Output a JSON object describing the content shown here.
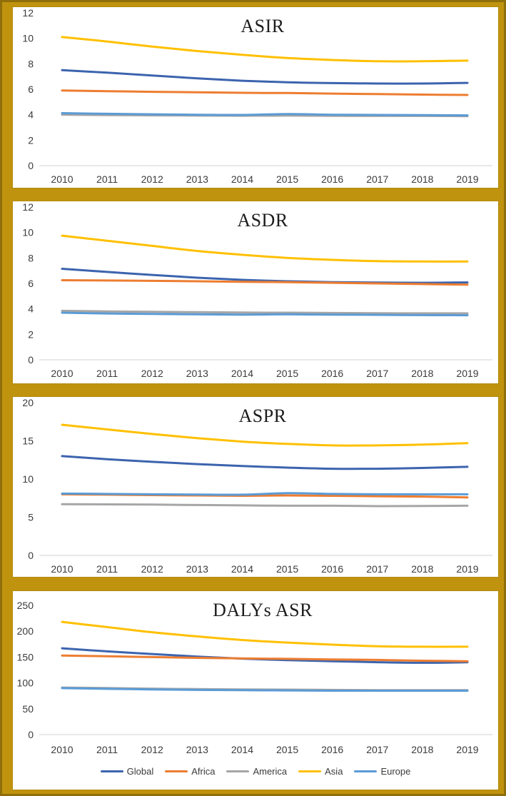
{
  "figure": {
    "frame_color": "#C0930E",
    "frame_edge_color": "#8F6E0C",
    "panel_background": "#FFFFFF",
    "axis_line_color": "#D9D9D9",
    "tick_label_color": "#3B3B3B"
  },
  "colors": {
    "Global": "#3C64AE",
    "Africa": "#ED7D31",
    "America": "#A6A6A6",
    "Asia": "#FFC000",
    "Europe": "#5B9BD5"
  },
  "legend": {
    "items": [
      "Global",
      "Africa",
      "America",
      "Asia",
      "Europe"
    ]
  },
  "chart_data": [
    {
      "type": "line",
      "title": "ASIR",
      "xlabel": "",
      "ylabel": "",
      "grid": false,
      "legend_position": "none",
      "ylim": [
        0,
        12
      ],
      "yticks": [
        0,
        2,
        4,
        6,
        8,
        10,
        12
      ],
      "categories": [
        "2010",
        "2011",
        "2012",
        "2013",
        "2014",
        "2015",
        "2016",
        "2017",
        "2018",
        "2019"
      ],
      "series": [
        {
          "name": "Global",
          "values": [
            7.5,
            7.3,
            7.08,
            6.85,
            6.67,
            6.55,
            6.48,
            6.45,
            6.45,
            6.5
          ]
        },
        {
          "name": "Africa",
          "values": [
            5.9,
            5.85,
            5.8,
            5.76,
            5.72,
            5.7,
            5.66,
            5.62,
            5.58,
            5.55
          ]
        },
        {
          "name": "America",
          "values": [
            4.0,
            3.97,
            3.95,
            3.93,
            3.92,
            3.93,
            3.91,
            3.9,
            3.9,
            3.88
          ]
        },
        {
          "name": "Asia",
          "values": [
            10.1,
            9.75,
            9.35,
            9.0,
            8.7,
            8.45,
            8.3,
            8.2,
            8.2,
            8.25
          ]
        },
        {
          "name": "Europe",
          "values": [
            4.12,
            4.07,
            4.03,
            4.0,
            3.98,
            4.05,
            4.0,
            3.98,
            3.97,
            3.95
          ]
        }
      ]
    },
    {
      "type": "line",
      "title": "ASDR",
      "xlabel": "",
      "ylabel": "",
      "grid": false,
      "legend_position": "none",
      "ylim": [
        0,
        12
      ],
      "yticks": [
        0,
        2,
        4,
        6,
        8,
        10,
        12
      ],
      "categories": [
        "2010",
        "2011",
        "2012",
        "2013",
        "2014",
        "2015",
        "2016",
        "2017",
        "2018",
        "2019"
      ],
      "series": [
        {
          "name": "Global",
          "values": [
            7.15,
            6.9,
            6.67,
            6.45,
            6.28,
            6.17,
            6.1,
            6.07,
            6.05,
            6.08
          ]
        },
        {
          "name": "Africa",
          "values": [
            6.25,
            6.23,
            6.2,
            6.17,
            6.13,
            6.1,
            6.05,
            6.0,
            5.95,
            5.9
          ]
        },
        {
          "name": "America",
          "values": [
            3.85,
            3.8,
            3.77,
            3.74,
            3.71,
            3.7,
            3.68,
            3.66,
            3.65,
            3.65
          ]
        },
        {
          "name": "Asia",
          "values": [
            9.75,
            9.35,
            8.95,
            8.55,
            8.25,
            8.0,
            7.85,
            7.75,
            7.72,
            7.72
          ]
        },
        {
          "name": "Europe",
          "values": [
            3.7,
            3.64,
            3.6,
            3.57,
            3.55,
            3.57,
            3.55,
            3.53,
            3.51,
            3.5
          ]
        }
      ]
    },
    {
      "type": "line",
      "title": "ASPR",
      "xlabel": "",
      "ylabel": "",
      "grid": false,
      "legend_position": "none",
      "ylim": [
        0,
        20
      ],
      "yticks": [
        0,
        5,
        10,
        15,
        20
      ],
      "categories": [
        "2010",
        "2011",
        "2012",
        "2013",
        "2014",
        "2015",
        "2016",
        "2017",
        "2018",
        "2019"
      ],
      "series": [
        {
          "name": "Global",
          "values": [
            13.0,
            12.6,
            12.25,
            11.95,
            11.7,
            11.5,
            11.35,
            11.35,
            11.45,
            11.6
          ]
        },
        {
          "name": "Africa",
          "values": [
            8.0,
            7.95,
            7.9,
            7.85,
            7.8,
            7.85,
            7.8,
            7.75,
            7.7,
            7.6
          ]
        },
        {
          "name": "America",
          "values": [
            6.7,
            6.68,
            6.65,
            6.6,
            6.55,
            6.5,
            6.5,
            6.45,
            6.48,
            6.5
          ]
        },
        {
          "name": "Asia",
          "values": [
            17.1,
            16.5,
            15.9,
            15.35,
            14.9,
            14.6,
            14.4,
            14.4,
            14.5,
            14.7
          ]
        },
        {
          "name": "Europe",
          "values": [
            8.1,
            8.05,
            8.0,
            7.97,
            7.95,
            8.15,
            8.05,
            8.0,
            8.0,
            8.0
          ]
        }
      ]
    },
    {
      "type": "line",
      "title": "DALYs ASR",
      "xlabel": "",
      "ylabel": "",
      "grid": false,
      "legend_position": "bottom",
      "ylim": [
        0,
        250
      ],
      "yticks": [
        0,
        50,
        100,
        150,
        200,
        250
      ],
      "categories": [
        "2010",
        "2011",
        "2012",
        "2013",
        "2014",
        "2015",
        "2016",
        "2017",
        "2018",
        "2019"
      ],
      "series": [
        {
          "name": "Global",
          "values": [
            167,
            161,
            156,
            151,
            147,
            144,
            142,
            140,
            139,
            140
          ]
        },
        {
          "name": "Africa",
          "values": [
            153,
            151.5,
            150,
            148.5,
            147.5,
            146.5,
            145.5,
            144.5,
            143,
            142
          ]
        },
        {
          "name": "America",
          "values": [
            91,
            90,
            89,
            88,
            87.5,
            87,
            86.5,
            86,
            86,
            86
          ]
        },
        {
          "name": "Asia",
          "values": [
            218,
            208,
            198,
            190,
            183,
            178,
            174,
            171,
            170,
            170
          ]
        },
        {
          "name": "Europe",
          "values": [
            90,
            88.5,
            87.5,
            86.5,
            86,
            85.5,
            85,
            85,
            85,
            85
          ]
        }
      ]
    }
  ]
}
